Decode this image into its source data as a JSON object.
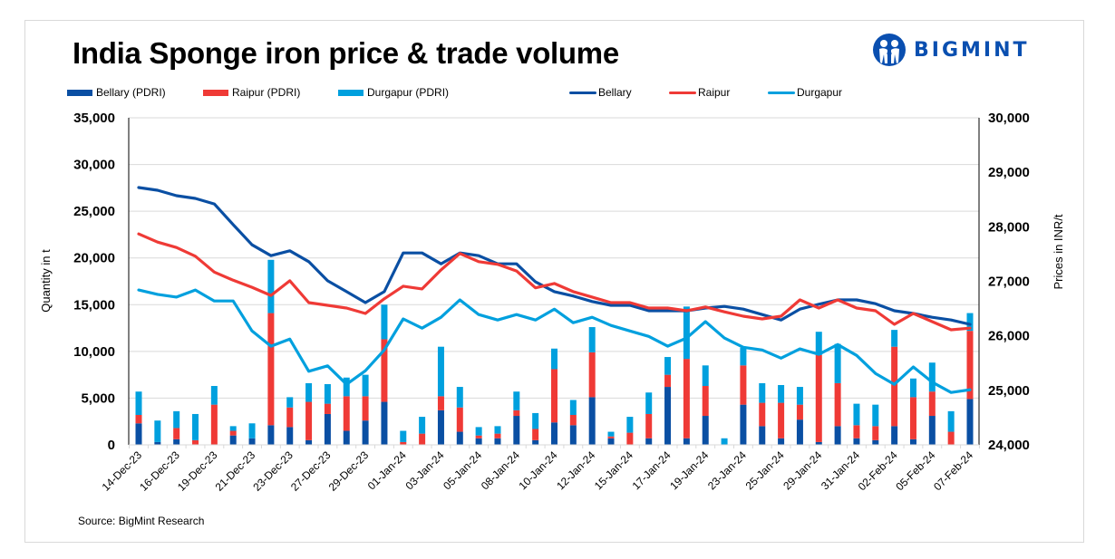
{
  "header": {
    "title": "India Sponge iron price & trade volume",
    "logo_text": "BIGMINT",
    "logo_color": "#0a4fb0"
  },
  "source": "Source: BigMint Research",
  "legend": [
    {
      "label": "Bellary (PDRI)",
      "kind": "bar",
      "color": "#0a4fa3"
    },
    {
      "label": "Raipur (PDRI)",
      "kind": "bar",
      "color": "#ef3a36"
    },
    {
      "label": "Durgapur (PDRI)",
      "kind": "bar",
      "color": "#00a0de"
    },
    {
      "label": "Bellary",
      "kind": "line",
      "color": "#0a4fa3"
    },
    {
      "label": "Raipur",
      "kind": "line",
      "color": "#ef3a36"
    },
    {
      "label": "Durgapur",
      "kind": "line",
      "color": "#00a0de"
    }
  ],
  "chart_data": {
    "type": "bar+line",
    "title": "India Sponge iron price & trade volume",
    "ylabel": "Quantity in t",
    "y2label": "Prices in INR/t",
    "ylim": [
      0,
      35000
    ],
    "y2lim": [
      24000,
      30000
    ],
    "yticks": [
      "0",
      "5,000",
      "10,000",
      "15,000",
      "20,000",
      "25,000",
      "30,000",
      "35,000"
    ],
    "y2ticks": [
      "24,000",
      "25,000",
      "26,000",
      "27,000",
      "28,000",
      "29,000",
      "30,000"
    ],
    "grid": true,
    "legend_position": "top",
    "x_tick_labels": [
      "14-Dec-23",
      "16-Dec-23",
      "19-Dec-23",
      "21-Dec-23",
      "23-Dec-23",
      "27-Dec-23",
      "29-Dec-23",
      "01-Jan-24",
      "03-Jan-24",
      "05-Jan-24",
      "08-Jan-24",
      "10-Jan-24",
      "12-Jan-24",
      "15-Jan-24",
      "17-Jan-24",
      "19-Jan-24",
      "23-Jan-24",
      "25-Jan-24",
      "29-Jan-24",
      "31-Jan-24",
      "02-Feb-24",
      "05-Feb-24",
      "07-Feb-24"
    ],
    "x_label_every": 2,
    "bar_series": [
      {
        "name": "Bellary (PDRI)",
        "color": "#0a4fa3",
        "values": [
          2300,
          300,
          600,
          0,
          0,
          1000,
          700,
          2100,
          1900,
          500,
          3300,
          1500,
          2600,
          4600,
          0,
          0,
          3700,
          1400,
          700,
          700,
          3100,
          500,
          2400,
          2100,
          5100,
          700,
          0,
          700,
          6200,
          700,
          3100,
          0,
          4300,
          2000,
          700,
          2700,
          300,
          2000,
          700,
          500,
          2000,
          600,
          3100,
          0,
          4900
        ]
      },
      {
        "name": "Raipur (PDRI)",
        "color": "#ef3a36",
        "values": [
          900,
          0,
          1200,
          500,
          4300,
          500,
          0,
          12000,
          2100,
          4100,
          1100,
          3700,
          2600,
          6700,
          300,
          1200,
          1500,
          2600,
          300,
          500,
          600,
          1200,
          5700,
          1100,
          4800,
          200,
          1300,
          2600,
          1300,
          8500,
          3200,
          0,
          4200,
          2500,
          3800,
          1600,
          9300,
          4600,
          1400,
          1500,
          8500,
          4500,
          2600,
          1400,
          7300
        ]
      },
      {
        "name": "Durgapur (PDRI)",
        "color": "#00a0de",
        "values": [
          2500,
          2300,
          1800,
          2800,
          2000,
          500,
          1600,
          5700,
          1100,
          2000,
          2100,
          2000,
          2300,
          3700,
          1200,
          1800,
          5300,
          2200,
          900,
          800,
          2000,
          1700,
          2200,
          1600,
          2700,
          500,
          1700,
          2300,
          1900,
          5600,
          2200,
          700,
          1900,
          2100,
          1900,
          1900,
          2500,
          4200,
          2300,
          2300,
          1800,
          2000,
          3100,
          2200,
          1900
        ]
      }
    ],
    "line_series": [
      {
        "name": "Bellary",
        "color": "#0a4fa3",
        "values": [
          28720,
          28670,
          28570,
          28520,
          28420,
          28040,
          27670,
          27470,
          27560,
          27360,
          27010,
          26810,
          26610,
          26810,
          27520,
          27520,
          27320,
          27520,
          27470,
          27320,
          27320,
          26990,
          26810,
          26730,
          26630,
          26560,
          26560,
          26460,
          26460,
          26460,
          26510,
          26540,
          26490,
          26390,
          26290,
          26490,
          26580,
          26660,
          26660,
          26590,
          26460,
          26410,
          26340,
          26290,
          26210
        ]
      },
      {
        "name": "Raipur",
        "color": "#ef3a36",
        "values": [
          27870,
          27720,
          27620,
          27460,
          27170,
          27020,
          26890,
          26740,
          27010,
          26610,
          26560,
          26510,
          26410,
          26680,
          26910,
          26860,
          27210,
          27510,
          27360,
          27310,
          27190,
          26880,
          26960,
          26810,
          26710,
          26610,
          26610,
          26510,
          26510,
          26460,
          26530,
          26440,
          26360,
          26310,
          26360,
          26660,
          26510,
          26660,
          26510,
          26460,
          26210,
          26410,
          26260,
          26110,
          26140
        ]
      },
      {
        "name": "Durgapur",
        "color": "#00a0de",
        "values": [
          26840,
          26760,
          26710,
          26840,
          26640,
          26640,
          26090,
          25810,
          25940,
          25350,
          25450,
          25110,
          25360,
          25740,
          26310,
          26140,
          26340,
          26660,
          26390,
          26290,
          26390,
          26290,
          26490,
          26240,
          26340,
          26190,
          26090,
          25990,
          25810,
          25960,
          26260,
          25960,
          25790,
          25740,
          25590,
          25760,
          25660,
          25840,
          25640,
          25310,
          25110,
          25430,
          25150,
          24960,
          25010
        ]
      }
    ]
  }
}
